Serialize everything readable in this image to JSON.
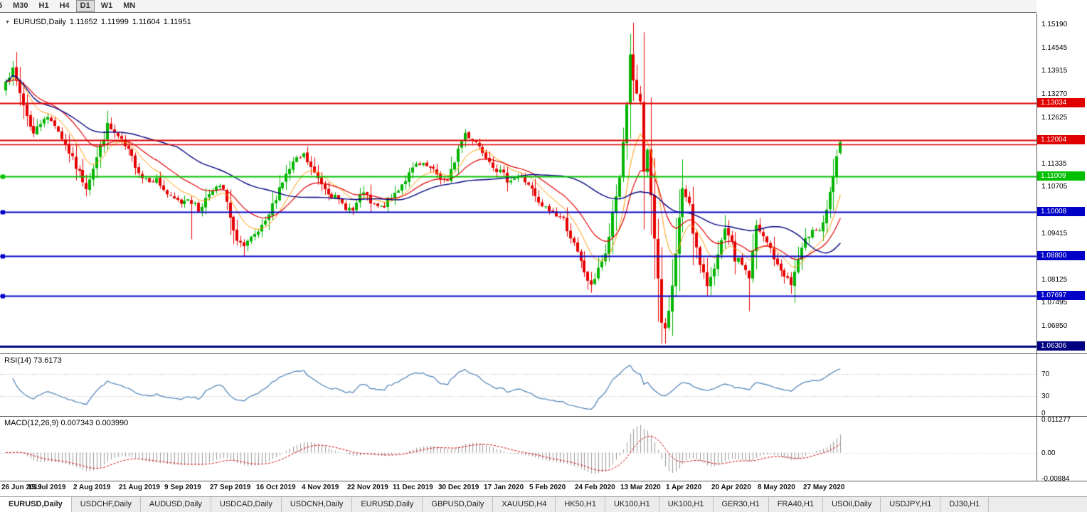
{
  "toolbar": {
    "buttons": [
      "5",
      "M30",
      "H1",
      "H4",
      "D1",
      "W1",
      "MN"
    ],
    "active": "D1"
  },
  "chart_header": {
    "dropdown_icon": "▼",
    "symbol": "EURUSD,Daily",
    "open": "1.11652",
    "high": "1.11999",
    "low": "1.11604",
    "close": "1.11951"
  },
  "chart_data": {
    "type": "candlestick",
    "symbol": "EURUSD",
    "timeframe": "Daily",
    "ylim": [
      1.061,
      1.1551
    ],
    "num_candles": 239,
    "up_color": "#00B400",
    "down_color": "#E60000",
    "waypoints": [
      [
        0,
        1.1372
      ],
      [
        2,
        1.1392
      ],
      [
        4,
        1.133
      ],
      [
        6,
        1.1268
      ],
      [
        8,
        1.1218
      ],
      [
        11,
        1.1266
      ],
      [
        14,
        1.1246
      ],
      [
        17,
        1.1188
      ],
      [
        20,
        1.1126
      ],
      [
        23,
        1.1072
      ],
      [
        26,
        1.1152
      ],
      [
        29,
        1.124
      ],
      [
        32,
        1.1208
      ],
      [
        35,
        1.1168
      ],
      [
        39,
        1.1098
      ],
      [
        43,
        1.109
      ],
      [
        47,
        1.1038
      ],
      [
        50,
        1.1028
      ],
      [
        52,
        1.1044
      ],
      [
        55,
        1.1006
      ],
      [
        59,
        1.107
      ],
      [
        62,
        1.1064
      ],
      [
        65,
        1.0942
      ],
      [
        68,
        1.0904
      ],
      [
        71,
        1.0934
      ],
      [
        74,
        1.0968
      ],
      [
        78,
        1.107
      ],
      [
        82,
        1.1136
      ],
      [
        85,
        1.1158
      ],
      [
        88,
        1.1106
      ],
      [
        91,
        1.107
      ],
      [
        95,
        1.103
      ],
      [
        99,
        1.1004
      ],
      [
        102,
        1.106
      ],
      [
        104,
        1.1022
      ],
      [
        107,
        1.1012
      ],
      [
        110,
        1.104
      ],
      [
        113,
        1.108
      ],
      [
        117,
        1.113
      ],
      [
        120,
        1.1126
      ],
      [
        123,
        1.1106
      ],
      [
        126,
        1.1082
      ],
      [
        129,
        1.1176
      ],
      [
        131,
        1.122
      ],
      [
        134,
        1.1196
      ],
      [
        137,
        1.116
      ],
      [
        140,
        1.112
      ],
      [
        143,
        1.1092
      ],
      [
        146,
        1.11
      ],
      [
        149,
        1.108
      ],
      [
        152,
        1.1022
      ],
      [
        156,
        1.1
      ],
      [
        159,
        1.098
      ],
      [
        162,
        1.091
      ],
      [
        165,
        1.0836
      ],
      [
        167,
        1.0792
      ],
      [
        169,
        1.085
      ],
      [
        171,
        1.088
      ],
      [
        173,
        1.099
      ],
      [
        175,
        1.1098
      ],
      [
        177,
        1.1298
      ],
      [
        178,
        1.1442
      ],
      [
        179,
        1.1358
      ],
      [
        181,
        1.1298
      ],
      [
        182,
        1.1106
      ],
      [
        183,
        1.1174
      ],
      [
        185,
        1.0924
      ],
      [
        187,
        1.0694
      ],
      [
        188,
        1.0676
      ],
      [
        190,
        1.0794
      ],
      [
        192,
        1.0984
      ],
      [
        193,
        1.106
      ],
      [
        195,
        1.103
      ],
      [
        196,
        1.095
      ],
      [
        198,
        1.085
      ],
      [
        200,
        1.08
      ],
      [
        203,
        1.088
      ],
      [
        205,
        1.095
      ],
      [
        207,
        1.091
      ],
      [
        208,
        1.087
      ],
      [
        210,
        1.086
      ],
      [
        212,
        1.082
      ],
      [
        214,
        1.096
      ],
      [
        216,
        1.093
      ],
      [
        218,
        1.09
      ],
      [
        220,
        1.085
      ],
      [
        222,
        1.083
      ],
      [
        224,
        1.08
      ],
      [
        226,
        1.087
      ],
      [
        228,
        1.092
      ],
      [
        230,
        1.096
      ],
      [
        232,
        1.095
      ],
      [
        234,
        1.1
      ],
      [
        236,
        1.11
      ],
      [
        238,
        1.1195
      ]
    ],
    "overrides": {
      "0": {
        "open": 1.1338
      },
      "53": {
        "low": 1.0926
      },
      "68": {
        "low": 1.0879
      },
      "167": {
        "low": 1.0778
      },
      "178": {
        "high": 1.1495
      },
      "188": {
        "low": 1.0637
      },
      "193": {
        "high": 1.1147
      },
      "200": {
        "low": 1.077
      },
      "212": {
        "low": 1.0727
      },
      "224": {
        "low": 1.0775
      },
      "238": {
        "open": 1.11652,
        "high": 1.11999,
        "low": 1.11604,
        "close": 1.11951
      }
    },
    "moving_averages": [
      {
        "type": "ema",
        "period": 10,
        "color": "#FF9900",
        "width": 1
      },
      {
        "type": "ema",
        "period": 21,
        "color": "#E00000",
        "width": 1.2
      },
      {
        "type": "sma",
        "period": 50,
        "color": "#000080",
        "width": 1.4
      }
    ],
    "hlines": [
      {
        "price": 1.13034,
        "color": "#E00000",
        "width": 2,
        "badge": "1.13034",
        "marker": false
      },
      {
        "price": 1.12004,
        "color": "#E00000",
        "width": 2,
        "badge": "1.12004",
        "marker": false
      },
      {
        "price": 1.1188,
        "color": "#E00000",
        "width": 1.5,
        "badge": null,
        "marker": false
      },
      {
        "price": 1.11009,
        "color": "#00C000",
        "width": 2,
        "badge": "1.11009",
        "marker": true
      },
      {
        "price": 1.10008,
        "color": "#0000C8",
        "width": 2,
        "badge": "1.10008",
        "marker": true
      },
      {
        "price": 1.088,
        "color": "#0000C8",
        "width": 2,
        "badge": "1.08800",
        "marker": true
      },
      {
        "price": 1.07697,
        "color": "#0000C8",
        "width": 2,
        "badge": "1.07697",
        "marker": true
      },
      {
        "price": 1.06306,
        "color": "#000080",
        "width": 3,
        "badge": "1.06306",
        "marker": false
      }
    ],
    "price_ticks": [
      "1.15190",
      "1.14545",
      "1.13915",
      "1.13270",
      "1.12625",
      "1.11335",
      "1.10705",
      "1.09415",
      "1.08125",
      "1.07495",
      "1.06850"
    ],
    "date_ticks": [
      {
        "label": "26 Jun 2019",
        "index": 0
      },
      {
        "label": "15 Jul 2019",
        "index": 13
      },
      {
        "label": "2 Aug 2019",
        "index": 26
      },
      {
        "label": "21 Aug 2019",
        "index": 39
      },
      {
        "label": "9 Sep 2019",
        "index": 52
      },
      {
        "label": "27 Sep 2019",
        "index": 65
      },
      {
        "label": "16 Oct 2019",
        "index": 78
      },
      {
        "label": "4 Nov 2019",
        "index": 91
      },
      {
        "label": "22 Nov 2019",
        "index": 104
      },
      {
        "label": "11 Dec 2019",
        "index": 117
      },
      {
        "label": "30 Dec 2019",
        "index": 130
      },
      {
        "label": "17 Jan 2020",
        "index": 143
      },
      {
        "label": "5 Feb 2020",
        "index": 156
      },
      {
        "label": "24 Feb 2020",
        "index": 169
      },
      {
        "label": "13 Mar 2020",
        "index": 182
      },
      {
        "label": "1 Apr 2020",
        "index": 195
      },
      {
        "label": "20 Apr 2020",
        "index": 208
      },
      {
        "label": "8 May 2020",
        "index": 221
      },
      {
        "label": "27 May 2020",
        "index": 234
      }
    ],
    "rsi": {
      "label": "RSI(14) 73.6173",
      "period": 14,
      "value": "73.6173",
      "levels": [
        70,
        30
      ],
      "ticks": [
        {
          "value": 70,
          "label": "70"
        },
        {
          "value": 30,
          "label": "30"
        },
        {
          "value": 0,
          "label": "0"
        }
      ],
      "color": "#4A7FB5",
      "ylim": [
        0,
        100
      ]
    },
    "macd": {
      "label": "MACD(12,26,9) 0.007343 0.003990",
      "fast": 12,
      "slow": 26,
      "signal": 9,
      "values": {
        "macd": "0.007343",
        "signal": "0.003990"
      },
      "ticks": [
        {
          "value": 0.011277,
          "label": "0.011277"
        },
        {
          "value": 0,
          "label": "0.00"
        },
        {
          "value": -0.00884,
          "label": "-0.00884"
        }
      ],
      "ylim": [
        -0.0095,
        0.0122
      ],
      "hist_color": "#9A9A9A",
      "signal_color": "#D00000"
    }
  },
  "tabs": {
    "items": [
      "EURUSD,Daily",
      "USDCHF,Daily",
      "AUDUSD,Daily",
      "USDCAD,Daily",
      "USDCNH,Daily",
      "EURUSD,Daily",
      "GBPUSD,Daily",
      "XAUUSD,H4",
      "HK50,H1",
      "UK100,H1",
      "UK100,H1",
      "GER30,H1",
      "FRA40,H1",
      "USOil,Daily",
      "USDJPY,H1",
      "DJ30,H1"
    ],
    "active_index": 0
  }
}
